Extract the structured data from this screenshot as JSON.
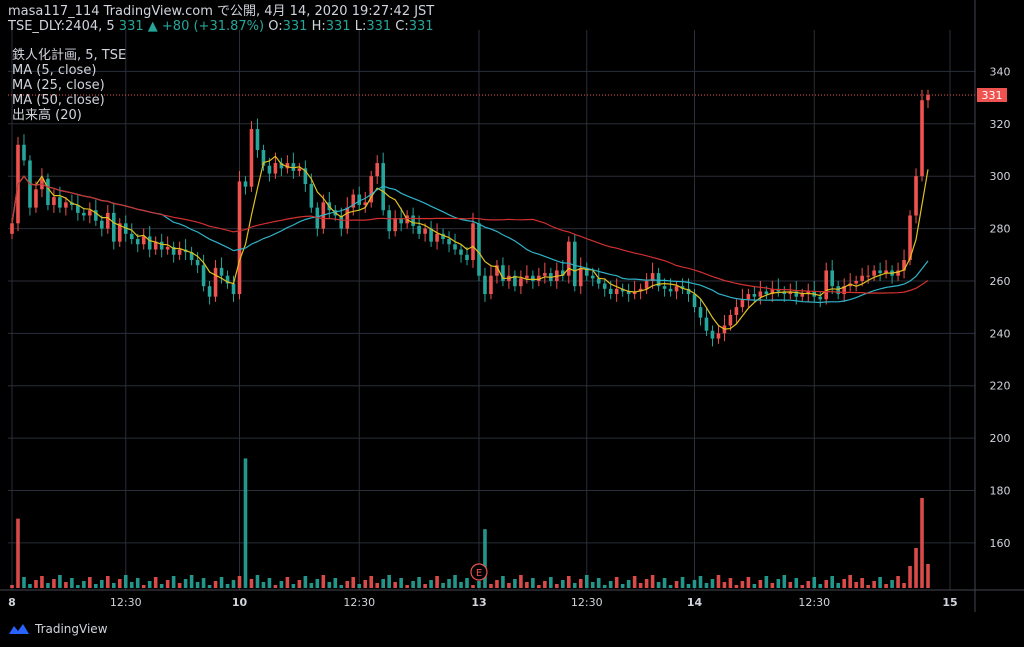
{
  "header": {
    "title": "masa117_114 TradingView.com で公開, 4月 14, 2020 19:27:42 JST",
    "symbol": "TSE_DLY:2404, 5",
    "last": "331",
    "change": "+80 (+31.87%)",
    "o_label": "O:",
    "o": "331",
    "h_label": "H:",
    "h": "331",
    "l_label": "L:",
    "l": "331",
    "c_label": "C:",
    "c": "331"
  },
  "indicators": [
    "鉄人化計画, 5, TSE",
    "MA (5, close)",
    "MA (25, close)",
    "MA (50, close)",
    "出来高 (20)"
  ],
  "price_tag": "331",
  "earnings_marker": "E",
  "brand": "TradingView",
  "colors": {
    "up": "#ef5350",
    "down": "#26a69a",
    "ma5": "#e0c020",
    "ma25": "#2fb3c8",
    "ma50": "#d03030",
    "grid": "#2a2e39",
    "axis_text": "#d1d4dc"
  },
  "chart_data": {
    "type": "candlestick",
    "y_ticks": [
      340,
      320,
      300,
      280,
      260,
      240,
      220,
      200,
      180,
      160
    ],
    "ylim": [
      142,
      352
    ],
    "x_labels": [
      "8",
      "12:30",
      "10",
      "12:30",
      "13",
      "12:30",
      "14",
      "12:30",
      "15"
    ],
    "last_price": 331,
    "series": {
      "price": [
        {
          "d": "8",
          "c": 282
        },
        {
          "d": "8",
          "c": 312
        },
        {
          "d": "8",
          "c": 306
        },
        {
          "d": "8",
          "c": 288
        },
        {
          "d": "8",
          "c": 295
        },
        {
          "d": "8",
          "c": 299
        },
        {
          "d": "8",
          "c": 289
        },
        {
          "d": "8",
          "c": 292
        },
        {
          "d": "8",
          "c": 288
        },
        {
          "d": "8",
          "c": 290
        },
        {
          "d": "8",
          "c": 289
        },
        {
          "d": "8",
          "c": 286
        },
        {
          "d": "8",
          "c": 285
        },
        {
          "d": "8",
          "c": 287
        },
        {
          "d": "8",
          "c": 283
        },
        {
          "d": "8",
          "c": 280
        },
        {
          "d": "8",
          "c": 286
        },
        {
          "d": "8",
          "c": 275
        },
        {
          "d": "8",
          "c": 282
        },
        {
          "d": "8",
          "c": 278
        },
        {
          "d": "8",
          "c": 276
        },
        {
          "d": "8",
          "c": 274
        },
        {
          "d": "8",
          "c": 277
        },
        {
          "d": "8",
          "c": 272
        },
        {
          "d": "8",
          "c": 275
        },
        {
          "d": "8",
          "c": 272
        },
        {
          "d": "8",
          "c": 273
        },
        {
          "d": "8",
          "c": 270
        },
        {
          "d": "8",
          "c": 272
        },
        {
          "d": "8",
          "c": 271
        },
        {
          "d": "8",
          "c": 268
        },
        {
          "d": "8",
          "c": 266
        },
        {
          "d": "8",
          "c": 258
        },
        {
          "d": "8",
          "c": 254
        },
        {
          "d": "8",
          "c": 265
        },
        {
          "d": "8",
          "c": 262
        },
        {
          "d": "8",
          "c": 259
        },
        {
          "d": "8",
          "c": 255
        },
        {
          "d": "10",
          "c": 298
        },
        {
          "d": "10",
          "c": 296
        },
        {
          "d": "10",
          "c": 318
        },
        {
          "d": "10",
          "c": 310
        },
        {
          "d": "10",
          "c": 304
        },
        {
          "d": "10",
          "c": 301
        },
        {
          "d": "10",
          "c": 305
        },
        {
          "d": "10",
          "c": 303
        },
        {
          "d": "10",
          "c": 305
        },
        {
          "d": "10",
          "c": 302
        },
        {
          "d": "10",
          "c": 303
        },
        {
          "d": "10",
          "c": 297
        },
        {
          "d": "10",
          "c": 288
        },
        {
          "d": "10",
          "c": 280
        },
        {
          "d": "10",
          "c": 290
        },
        {
          "d": "10",
          "c": 287
        },
        {
          "d": "10",
          "c": 285
        },
        {
          "d": "10",
          "c": 280
        },
        {
          "d": "10",
          "c": 288
        },
        {
          "d": "10",
          "c": 293
        },
        {
          "d": "10",
          "c": 289
        },
        {
          "d": "10",
          "c": 290
        },
        {
          "d": "10",
          "c": 300
        },
        {
          "d": "10",
          "c": 305
        },
        {
          "d": "10",
          "c": 287
        },
        {
          "d": "10",
          "c": 279
        },
        {
          "d": "10",
          "c": 284
        },
        {
          "d": "10",
          "c": 282
        },
        {
          "d": "10",
          "c": 285
        },
        {
          "d": "10",
          "c": 281
        },
        {
          "d": "10",
          "c": 278
        },
        {
          "d": "10",
          "c": 280
        },
        {
          "d": "10",
          "c": 275
        },
        {
          "d": "10",
          "c": 278
        },
        {
          "d": "10",
          "c": 276
        },
        {
          "d": "10",
          "c": 274
        },
        {
          "d": "10",
          "c": 272
        },
        {
          "d": "10",
          "c": 270
        },
        {
          "d": "10",
          "c": 268
        },
        {
          "d": "10",
          "c": 282
        },
        {
          "d": "13",
          "c": 262
        },
        {
          "d": "13",
          "c": 255
        },
        {
          "d": "13",
          "c": 262
        },
        {
          "d": "13",
          "c": 266
        },
        {
          "d": "13",
          "c": 260
        },
        {
          "d": "13",
          "c": 262
        },
        {
          "d": "13",
          "c": 258
        },
        {
          "d": "13",
          "c": 261
        },
        {
          "d": "13",
          "c": 262
        },
        {
          "d": "13",
          "c": 260
        },
        {
          "d": "13",
          "c": 262
        },
        {
          "d": "13",
          "c": 263
        },
        {
          "d": "13",
          "c": 260
        },
        {
          "d": "13",
          "c": 264
        },
        {
          "d": "13",
          "c": 262
        },
        {
          "d": "13",
          "c": 275
        },
        {
          "d": "13",
          "c": 258
        },
        {
          "d": "13",
          "c": 265
        },
        {
          "d": "13",
          "c": 262
        },
        {
          "d": "13",
          "c": 261
        },
        {
          "d": "13",
          "c": 259
        },
        {
          "d": "13",
          "c": 257
        },
        {
          "d": "13",
          "c": 255
        },
        {
          "d": "13",
          "c": 257
        },
        {
          "d": "13",
          "c": 256
        },
        {
          "d": "13",
          "c": 255
        },
        {
          "d": "13",
          "c": 256
        },
        {
          "d": "13",
          "c": 257
        },
        {
          "d": "13",
          "c": 260
        },
        {
          "d": "13",
          "c": 263
        },
        {
          "d": "13",
          "c": 258
        },
        {
          "d": "13",
          "c": 257
        },
        {
          "d": "13",
          "c": 256
        },
        {
          "d": "13",
          "c": 258
        },
        {
          "d": "13",
          "c": 257
        },
        {
          "d": "13",
          "c": 255
        },
        {
          "d": "14",
          "c": 250
        },
        {
          "d": "14",
          "c": 246
        },
        {
          "d": "14",
          "c": 241
        },
        {
          "d": "14",
          "c": 238
        },
        {
          "d": "14",
          "c": 240
        },
        {
          "d": "14",
          "c": 243
        },
        {
          "d": "14",
          "c": 247
        },
        {
          "d": "14",
          "c": 250
        },
        {
          "d": "14",
          "c": 253
        },
        {
          "d": "14",
          "c": 255
        },
        {
          "d": "14",
          "c": 254
        },
        {
          "d": "14",
          "c": 256
        },
        {
          "d": "14",
          "c": 255
        },
        {
          "d": "14",
          "c": 257
        },
        {
          "d": "14",
          "c": 256
        },
        {
          "d": "14",
          "c": 255
        },
        {
          "d": "14",
          "c": 256
        },
        {
          "d": "14",
          "c": 254
        },
        {
          "d": "14",
          "c": 255
        },
        {
          "d": "14",
          "c": 256
        },
        {
          "d": "14",
          "c": 254
        },
        {
          "d": "14",
          "c": 253
        },
        {
          "d": "14",
          "c": 264
        },
        {
          "d": "14",
          "c": 258
        },
        {
          "d": "14",
          "c": 255
        },
        {
          "d": "14",
          "c": 258
        },
        {
          "d": "14",
          "c": 259
        },
        {
          "d": "14",
          "c": 260
        },
        {
          "d": "14",
          "c": 262
        },
        {
          "d": "14",
          "c": 262
        },
        {
          "d": "14",
          "c": 264
        },
        {
          "d": "14",
          "c": 263
        },
        {
          "d": "14",
          "c": 264
        },
        {
          "d": "14",
          "c": 262
        },
        {
          "d": "14",
          "c": 264
        },
        {
          "d": "14",
          "c": 268
        },
        {
          "d": "14",
          "c": 285
        },
        {
          "d": "14",
          "c": 300
        },
        {
          "d": "14",
          "c": 329
        },
        {
          "d": "14",
          "c": 331
        }
      ],
      "volume_peaks": [
        {
          "d": "8",
          "v": 170
        },
        {
          "d": "10",
          "v": 193
        },
        {
          "d": "13",
          "v": 166
        },
        {
          "d": "14",
          "v": 175
        }
      ]
    }
  }
}
